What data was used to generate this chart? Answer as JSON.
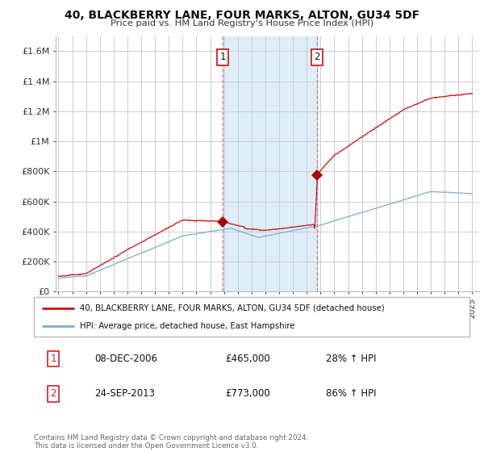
{
  "title": "40, BLACKBERRY LANE, FOUR MARKS, ALTON, GU34 5DF",
  "subtitle": "Price paid vs. HM Land Registry's House Price Index (HPI)",
  "ylabel_ticks": [
    "£0",
    "£200K",
    "£400K",
    "£600K",
    "£800K",
    "£1M",
    "£1.2M",
    "£1.4M",
    "£1.6M"
  ],
  "ytick_values": [
    0,
    200000,
    400000,
    600000,
    800000,
    1000000,
    1200000,
    1400000,
    1600000
  ],
  "ylim": [
    0,
    1700000
  ],
  "xlim_start": 1994.8,
  "xlim_end": 2025.5,
  "x_ticks": [
    1995,
    1996,
    1997,
    1998,
    1999,
    2000,
    2001,
    2002,
    2003,
    2004,
    2005,
    2006,
    2007,
    2008,
    2009,
    2010,
    2011,
    2012,
    2013,
    2014,
    2015,
    2016,
    2017,
    2018,
    2019,
    2020,
    2021,
    2022,
    2023,
    2024,
    2025
  ],
  "transaction1_x": 2006.92,
  "transaction1_y": 465000,
  "transaction1_label": "1",
  "transaction2_x": 2013.73,
  "transaction2_y": 773000,
  "transaction2_label": "2",
  "marker_color": "#aa0000",
  "hpi_color": "#7aadcc",
  "price_color": "#cc1111",
  "highlight_color": "#ddeef8",
  "highlight_x1": 2006.92,
  "highlight_x2": 2013.73,
  "legend_line1": "40, BLACKBERRY LANE, FOUR MARKS, ALTON, GU34 5DF (detached house)",
  "legend_line2": "HPI: Average price, detached house, East Hampshire",
  "table_row1": [
    "1",
    "08-DEC-2006",
    "£465,000",
    "28% ↑ HPI"
  ],
  "table_row2": [
    "2",
    "24-SEP-2013",
    "£773,000",
    "86% ↑ HPI"
  ],
  "footnote": "Contains HM Land Registry data © Crown copyright and database right 2024.\nThis data is licensed under the Open Government Licence v3.0.",
  "background_color": "#ffffff",
  "grid_color": "#cccccc"
}
